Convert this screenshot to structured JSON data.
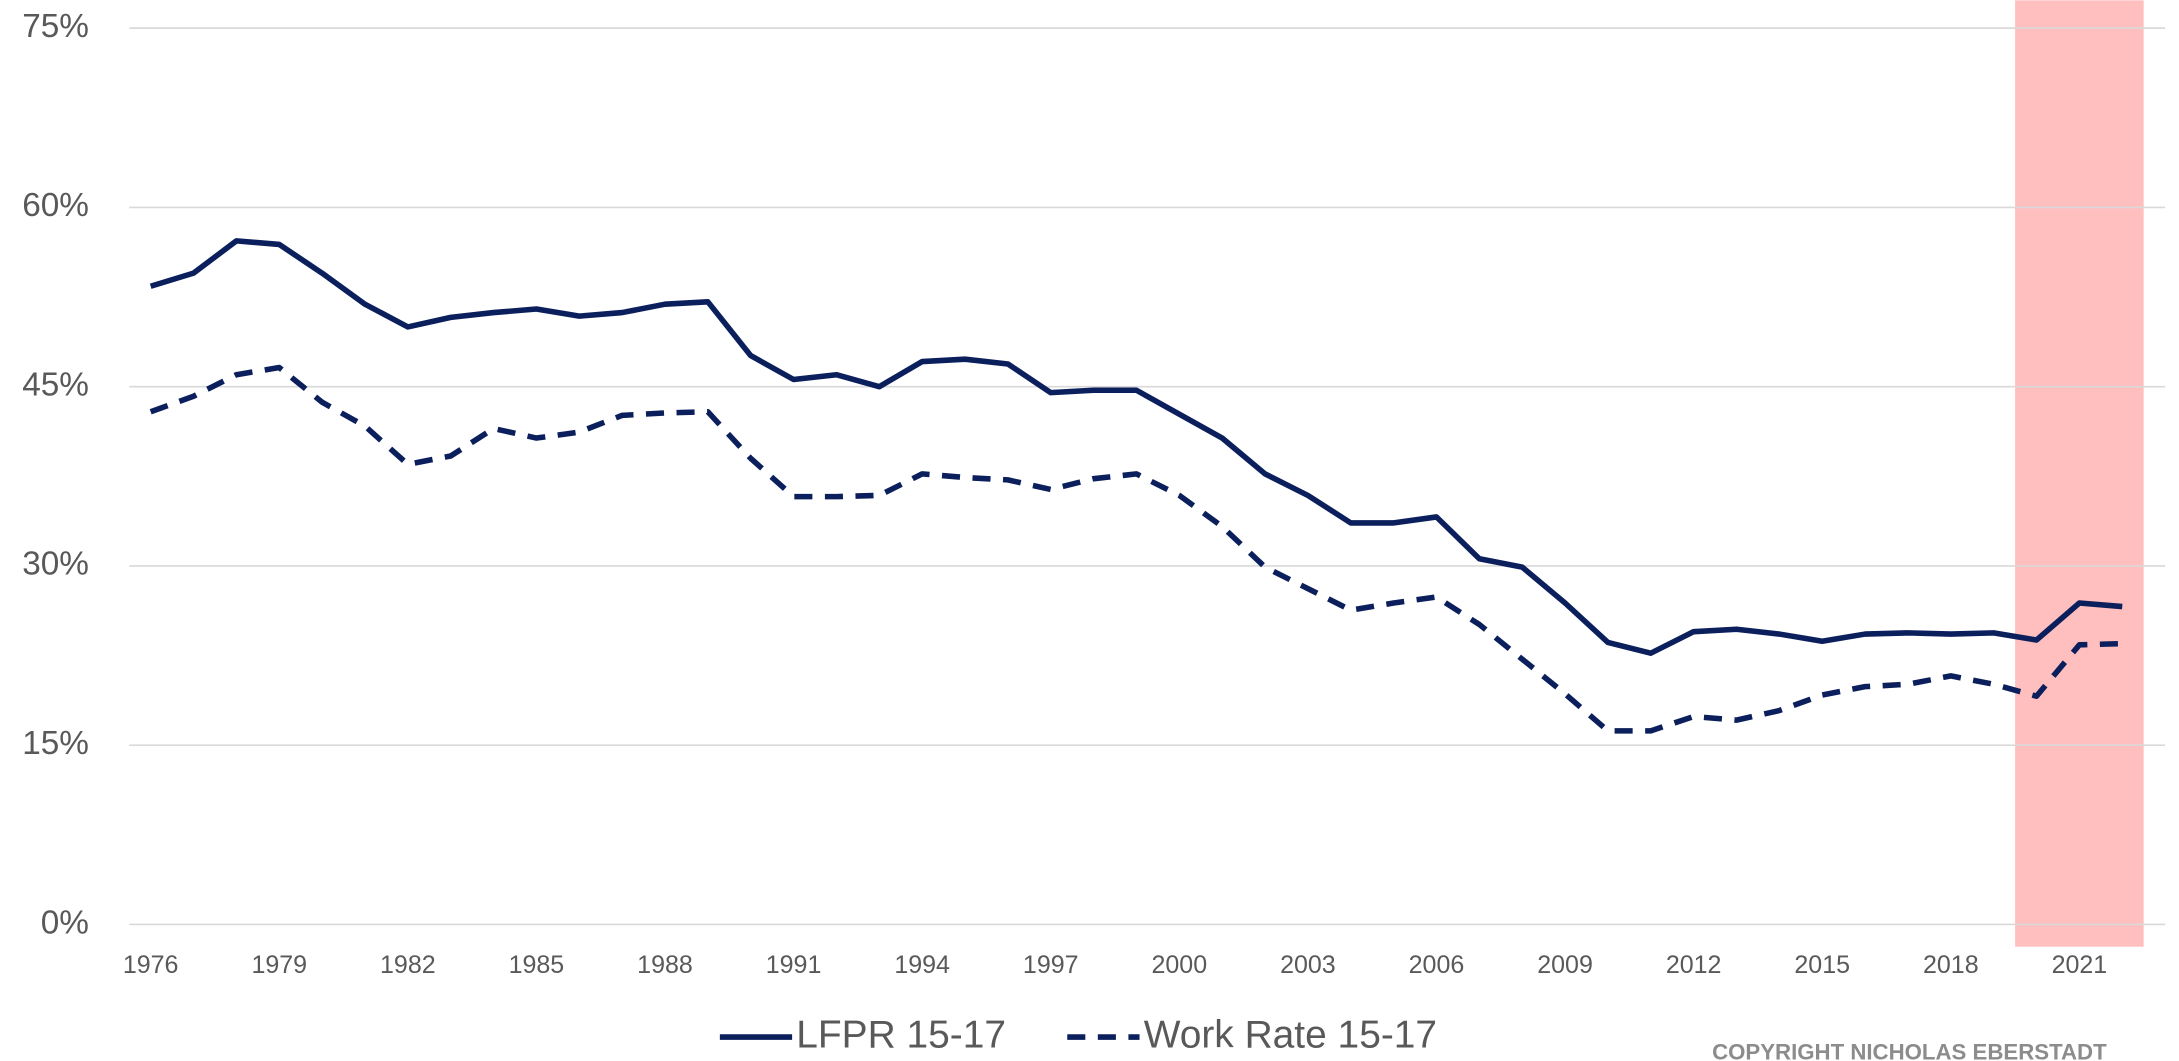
{
  "chart_data": {
    "type": "line",
    "x": [
      1976,
      1977,
      1978,
      1979,
      1980,
      1981,
      1982,
      1983,
      1984,
      1985,
      1986,
      1987,
      1988,
      1989,
      1990,
      1991,
      1992,
      1993,
      1994,
      1995,
      1996,
      1997,
      1998,
      1999,
      2000,
      2001,
      2002,
      2003,
      2004,
      2005,
      2006,
      2007,
      2008,
      2009,
      2010,
      2011,
      2012,
      2013,
      2014,
      2015,
      2016,
      2017,
      2018,
      2019,
      2020,
      2021,
      2022
    ],
    "series": [
      {
        "name": "LFPR 15-17",
        "color": "#0b1f5c",
        "dash": false,
        "values": [
          53.4,
          54.5,
          57.2,
          56.9,
          54.5,
          51.9,
          50.0,
          50.8,
          51.2,
          51.5,
          50.9,
          51.2,
          51.9,
          52.1,
          47.6,
          45.6,
          46.0,
          45.0,
          47.1,
          47.3,
          46.9,
          44.5,
          44.7,
          44.7,
          42.7,
          40.7,
          37.7,
          35.9,
          33.6,
          33.6,
          34.1,
          30.6,
          29.9,
          26.9,
          23.6,
          22.7,
          24.5,
          24.7,
          24.3,
          23.7,
          24.3,
          24.4,
          24.3,
          24.4,
          23.8,
          26.9,
          26.6
        ]
      },
      {
        "name": "Work Rate 15-17",
        "color": "#0b1f5c",
        "dash": true,
        "values": [
          42.9,
          44.2,
          46.0,
          46.6,
          43.7,
          41.7,
          38.5,
          39.2,
          41.5,
          40.7,
          41.2,
          42.6,
          42.8,
          42.9,
          39.0,
          35.8,
          35.8,
          35.9,
          37.7,
          37.4,
          37.2,
          36.4,
          37.3,
          37.7,
          35.9,
          33.3,
          29.9,
          28.1,
          26.3,
          26.9,
          27.4,
          25.1,
          22.2,
          19.3,
          16.2,
          16.2,
          17.4,
          17.1,
          17.9,
          19.2,
          19.9,
          20.1,
          20.8,
          20.1,
          19.1,
          23.4,
          23.5
        ]
      }
    ],
    "xlim": [
      1975.5,
      2023
    ],
    "xticks": [
      1976,
      1979,
      1982,
      1985,
      1988,
      1991,
      1994,
      1997,
      2000,
      2003,
      2006,
      2009,
      2012,
      2015,
      2018,
      2021
    ],
    "ylim": [
      0,
      75
    ],
    "yticks": [
      {
        "value": 0,
        "label": "0%"
      },
      {
        "value": 15,
        "label": "15%"
      },
      {
        "value": 30,
        "label": "30%"
      },
      {
        "value": 45,
        "label": "45%"
      },
      {
        "value": 60,
        "label": "60%"
      },
      {
        "value": 75,
        "label": "75%"
      }
    ],
    "grid": true,
    "highlight": {
      "range": [
        2019.5,
        2022.5
      ],
      "color": "#ffbfbf"
    },
    "legend": "bottom",
    "note": "COPYRIGHT NICHOLAS EBERSTADT"
  }
}
